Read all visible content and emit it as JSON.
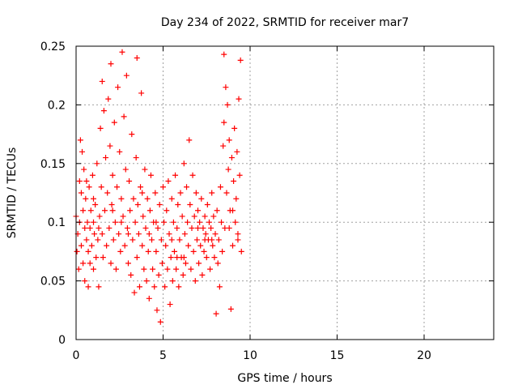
{
  "chart_data": {
    "type": "scatter",
    "title": "Day 234 of 2022, SRMTID for receiver mar7",
    "xlabel": "GPS time / hours",
    "ylabel": "SRMTID / TECUs",
    "xlim": [
      0,
      24
    ],
    "ylim": [
      0,
      0.25
    ],
    "xticks": [
      0,
      5,
      10,
      15,
      20
    ],
    "xtick_labels": [
      "0",
      "5",
      "10",
      "15",
      "20"
    ],
    "yticks": [
      0,
      0.05,
      0.1,
      0.15,
      0.2,
      0.25
    ],
    "ytick_labels": [
      "0",
      "0.05",
      "0.1",
      "0.15",
      "0.2",
      "0.25"
    ],
    "grid": true,
    "marker": "+",
    "series": [
      {
        "name": "mar7",
        "color": "#ff0000",
        "points": [
          [
            0.0,
            0.105
          ],
          [
            0.05,
            0.075
          ],
          [
            0.1,
            0.09
          ],
          [
            0.15,
            0.06
          ],
          [
            0.2,
            0.135
          ],
          [
            0.2,
            0.1
          ],
          [
            0.25,
            0.17
          ],
          [
            0.3,
            0.125
          ],
          [
            0.3,
            0.08
          ],
          [
            0.35,
            0.16
          ],
          [
            0.4,
            0.11
          ],
          [
            0.4,
            0.065
          ],
          [
            0.45,
            0.145
          ],
          [
            0.5,
            0.095
          ],
          [
            0.5,
            0.05
          ],
          [
            0.55,
            0.12
          ],
          [
            0.6,
            0.085
          ],
          [
            0.65,
            0.1
          ],
          [
            0.7,
            0.075
          ],
          [
            0.7,
            0.045
          ],
          [
            0.75,
            0.13
          ],
          [
            0.8,
            0.095
          ],
          [
            0.8,
            0.065
          ],
          [
            0.85,
            0.11
          ],
          [
            0.9,
            0.08
          ],
          [
            0.95,
            0.14
          ],
          [
            1.0,
            0.1
          ],
          [
            1.0,
            0.06
          ],
          [
            1.05,
            0.09
          ],
          [
            1.1,
            0.115
          ],
          [
            1.15,
            0.07
          ],
          [
            1.2,
            0.15
          ],
          [
            1.25,
            0.085
          ],
          [
            1.3,
            0.045
          ],
          [
            1.35,
            0.105
          ],
          [
            1.4,
            0.18
          ],
          [
            1.45,
            0.13
          ],
          [
            1.5,
            0.09
          ],
          [
            1.5,
            0.22
          ],
          [
            1.55,
            0.07
          ],
          [
            1.6,
            0.195
          ],
          [
            1.65,
            0.11
          ],
          [
            1.7,
            0.155
          ],
          [
            1.75,
            0.08
          ],
          [
            1.8,
            0.125
          ],
          [
            1.85,
            0.205
          ],
          [
            1.9,
            0.095
          ],
          [
            1.95,
            0.165
          ],
          [
            2.0,
            0.065
          ],
          [
            2.0,
            0.235
          ],
          [
            2.05,
            0.115
          ],
          [
            2.1,
            0.14
          ],
          [
            2.15,
            0.085
          ],
          [
            2.2,
            0.185
          ],
          [
            2.25,
            0.1
          ],
          [
            2.3,
            0.06
          ],
          [
            2.35,
            0.13
          ],
          [
            2.4,
            0.215
          ],
          [
            2.45,
            0.09
          ],
          [
            2.5,
            0.16
          ],
          [
            2.55,
            0.075
          ],
          [
            2.6,
            0.12
          ],
          [
            2.65,
            0.245
          ],
          [
            2.7,
            0.105
          ],
          [
            2.75,
            0.19
          ],
          [
            2.8,
            0.08
          ],
          [
            2.85,
            0.145
          ],
          [
            2.9,
            0.225
          ],
          [
            2.95,
            0.095
          ],
          [
            3.0,
            0.065
          ],
          [
            3.05,
            0.135
          ],
          [
            3.1,
            0.11
          ],
          [
            3.15,
            0.055
          ],
          [
            3.2,
            0.175
          ],
          [
            3.25,
            0.085
          ],
          [
            3.3,
            0.12
          ],
          [
            3.35,
            0.04
          ],
          [
            3.4,
            0.1
          ],
          [
            3.45,
            0.155
          ],
          [
            3.5,
            0.07
          ],
          [
            3.5,
            0.24
          ],
          [
            3.55,
            0.115
          ],
          [
            3.6,
            0.09
          ],
          [
            3.65,
            0.045
          ],
          [
            3.7,
            0.13
          ],
          [
            3.75,
            0.21
          ],
          [
            3.8,
            0.08
          ],
          [
            3.85,
            0.105
          ],
          [
            3.9,
            0.06
          ],
          [
            3.95,
            0.145
          ],
          [
            4.0,
            0.095
          ],
          [
            4.05,
            0.05
          ],
          [
            4.1,
            0.12
          ],
          [
            4.15,
            0.075
          ],
          [
            4.2,
            0.035
          ],
          [
            4.25,
            0.11
          ],
          [
            4.3,
            0.14
          ],
          [
            4.35,
            0.085
          ],
          [
            4.4,
            0.06
          ],
          [
            4.45,
            0.1
          ],
          [
            4.5,
            0.045
          ],
          [
            4.55,
            0.125
          ],
          [
            4.6,
            0.075
          ],
          [
            4.65,
            0.025
          ],
          [
            4.7,
            0.095
          ],
          [
            4.75,
            0.055
          ],
          [
            4.8,
            0.115
          ],
          [
            4.85,
            0.015
          ],
          [
            4.9,
            0.085
          ],
          [
            4.95,
            0.065
          ],
          [
            5.0,
            0.13
          ],
          [
            5.05,
            0.1
          ],
          [
            5.1,
            0.045
          ],
          [
            5.15,
            0.08
          ],
          [
            5.2,
            0.11
          ],
          [
            5.25,
            0.06
          ],
          [
            5.3,
            0.135
          ],
          [
            5.35,
            0.09
          ],
          [
            5.4,
            0.03
          ],
          [
            5.45,
            0.07
          ],
          [
            5.5,
            0.12
          ],
          [
            5.55,
            0.05
          ],
          [
            5.6,
            0.1
          ],
          [
            5.65,
            0.075
          ],
          [
            5.7,
            0.14
          ],
          [
            5.75,
            0.06
          ],
          [
            5.8,
            0.095
          ],
          [
            5.85,
            0.115
          ],
          [
            5.9,
            0.045
          ],
          [
            5.95,
            0.085
          ],
          [
            6.0,
            0.125
          ],
          [
            6.05,
            0.07
          ],
          [
            6.1,
            0.105
          ],
          [
            6.15,
            0.055
          ],
          [
            6.2,
            0.15
          ],
          [
            6.25,
            0.09
          ],
          [
            6.3,
            0.065
          ],
          [
            6.35,
            0.13
          ],
          [
            6.4,
            0.1
          ],
          [
            6.45,
            0.08
          ],
          [
            6.5,
            0.17
          ],
          [
            6.55,
            0.115
          ],
          [
            6.6,
            0.06
          ],
          [
            6.65,
            0.095
          ],
          [
            6.7,
            0.14
          ],
          [
            6.75,
            0.075
          ],
          [
            6.8,
            0.105
          ],
          [
            6.85,
            0.05
          ],
          [
            6.9,
            0.125
          ],
          [
            6.95,
            0.085
          ],
          [
            7.0,
            0.11
          ],
          [
            7.05,
            0.065
          ],
          [
            7.1,
            0.1
          ],
          [
            7.15,
            0.08
          ],
          [
            7.2,
            0.12
          ],
          [
            7.25,
            0.055
          ],
          [
            7.3,
            0.095
          ],
          [
            7.35,
            0.075
          ],
          [
            7.4,
            0.105
          ],
          [
            7.45,
            0.09
          ],
          [
            7.5,
            0.07
          ],
          [
            7.55,
            0.115
          ],
          [
            7.6,
            0.085
          ],
          [
            7.65,
            0.1
          ],
          [
            7.7,
            0.06
          ],
          [
            7.75,
            0.095
          ],
          [
            7.8,
            0.125
          ],
          [
            7.85,
            0.08
          ],
          [
            7.9,
            0.105
          ],
          [
            7.95,
            0.07
          ],
          [
            8.0,
            0.09
          ],
          [
            8.05,
            0.022
          ],
          [
            8.1,
            0.11
          ],
          [
            8.15,
            0.065
          ],
          [
            8.2,
            0.085
          ],
          [
            8.25,
            0.045
          ],
          [
            8.3,
            0.13
          ],
          [
            8.35,
            0.1
          ],
          [
            8.4,
            0.075
          ],
          [
            8.45,
            0.165
          ],
          [
            8.5,
            0.185
          ],
          [
            8.5,
            0.243
          ],
          [
            8.55,
            0.095
          ],
          [
            8.6,
            0.215
          ],
          [
            8.65,
            0.125
          ],
          [
            8.7,
            0.2
          ],
          [
            8.75,
            0.145
          ],
          [
            8.8,
            0.17
          ],
          [
            8.85,
            0.11
          ],
          [
            8.9,
            0.026
          ],
          [
            8.95,
            0.155
          ],
          [
            9.0,
            0.08
          ],
          [
            9.05,
            0.135
          ],
          [
            9.1,
            0.18
          ],
          [
            9.15,
            0.1
          ],
          [
            9.2,
            0.12
          ],
          [
            9.25,
            0.16
          ],
          [
            9.3,
            0.09
          ],
          [
            9.35,
            0.205
          ],
          [
            9.4,
            0.14
          ],
          [
            9.45,
            0.238
          ],
          [
            9.5,
            0.075
          ],
          [
            0.6,
            0.135
          ],
          [
            1.3,
            0.095
          ],
          [
            2.1,
            0.11
          ],
          [
            3.0,
            0.09
          ],
          [
            3.8,
            0.125
          ],
          [
            4.6,
            0.1
          ],
          [
            5.5,
            0.085
          ],
          [
            6.2,
            0.07
          ],
          [
            7.0,
            0.095
          ],
          [
            7.8,
            0.085
          ],
          [
            8.8,
            0.095
          ],
          [
            9.3,
            0.085
          ],
          [
            1.0,
            0.12
          ],
          [
            2.6,
            0.1
          ],
          [
            4.2,
            0.09
          ],
          [
            5.8,
            0.07
          ],
          [
            7.4,
            0.085
          ],
          [
            9.0,
            0.11
          ]
        ]
      }
    ]
  }
}
